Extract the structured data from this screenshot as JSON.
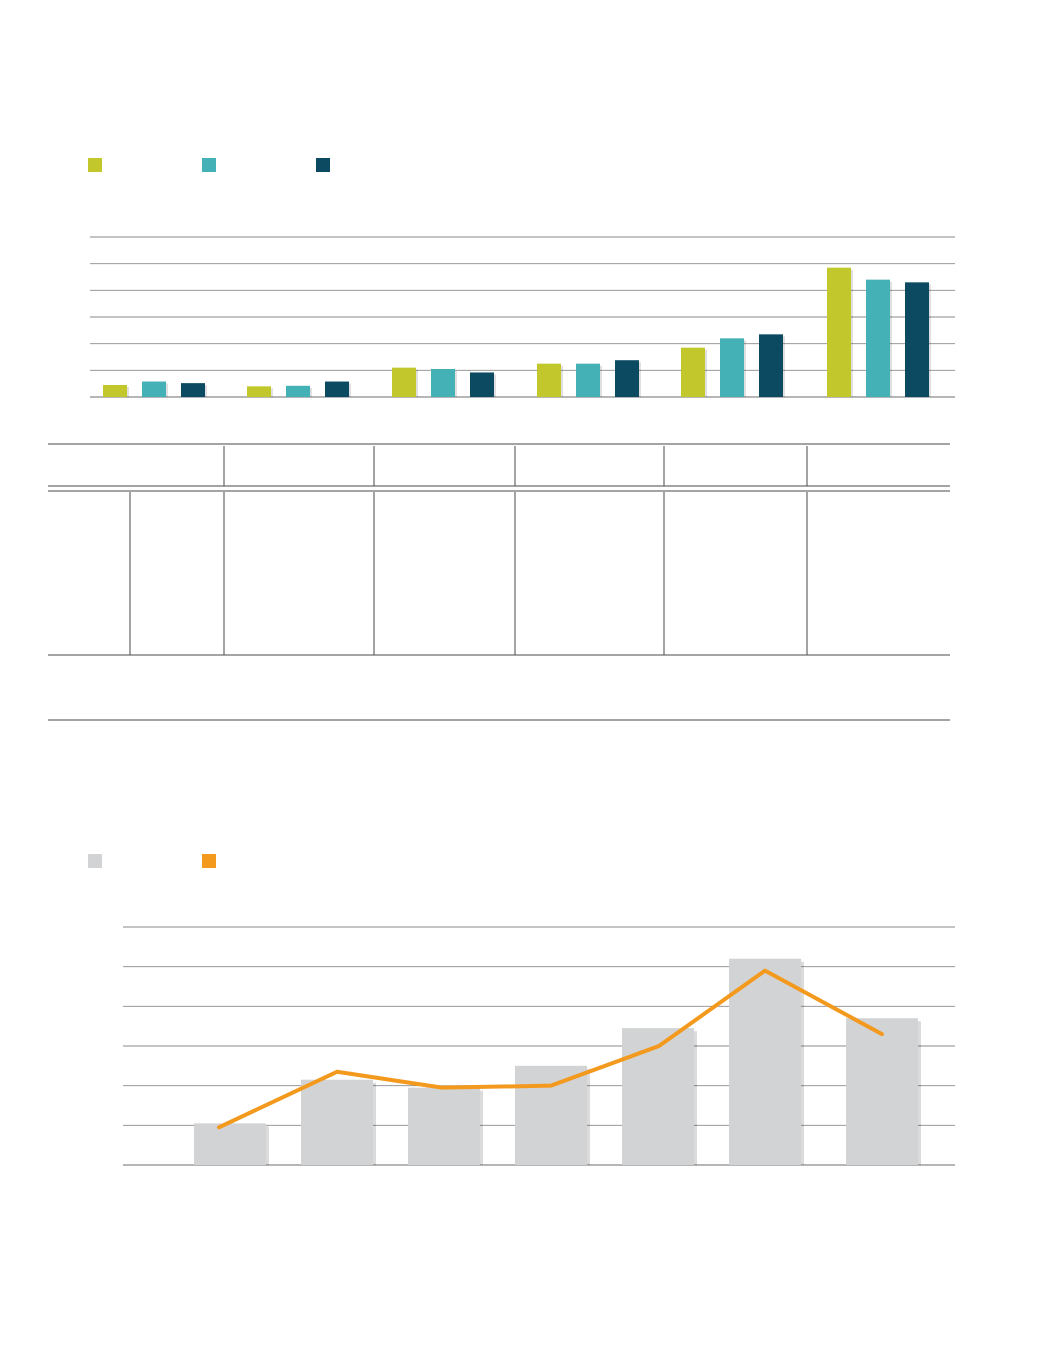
{
  "colors": {
    "series_1": "#c2c82c",
    "series_2": "#44b1b6",
    "series_3": "#0c4a62",
    "bar_gray": "#d2d3d4",
    "line_orange": "#f39a1e",
    "gridline": "#8a8a8a"
  },
  "chart_data": [
    {
      "type": "bar",
      "legend_placement": "top-left",
      "grid": true,
      "ylim": [
        0,
        6
      ],
      "categories": [
        "",
        "",
        "",
        "",
        "",
        ""
      ],
      "series": [
        {
          "values": [
            0.45,
            0.4,
            1.1,
            1.25,
            1.85,
            4.85
          ]
        },
        {
          "values": [
            0.58,
            0.42,
            1.05,
            1.25,
            2.2,
            4.4
          ]
        },
        {
          "values": [
            0.52,
            0.58,
            0.92,
            1.38,
            2.35,
            4.3
          ]
        }
      ]
    },
    {
      "type": "table",
      "columns": 6,
      "rows": []
    },
    {
      "type": "bar",
      "legend_placement": "top-left",
      "grid": true,
      "ylim": [
        0,
        6
      ],
      "categories": [
        "",
        "",
        "",
        "",
        "",
        "",
        ""
      ],
      "series": [
        {
          "type": "bar",
          "values": [
            1.05,
            2.15,
            1.95,
            2.5,
            3.45,
            5.2,
            3.7
          ]
        },
        {
          "type": "line",
          "values": [
            0.95,
            2.35,
            1.95,
            2.0,
            3.0,
            4.9,
            3.3
          ]
        }
      ]
    }
  ]
}
